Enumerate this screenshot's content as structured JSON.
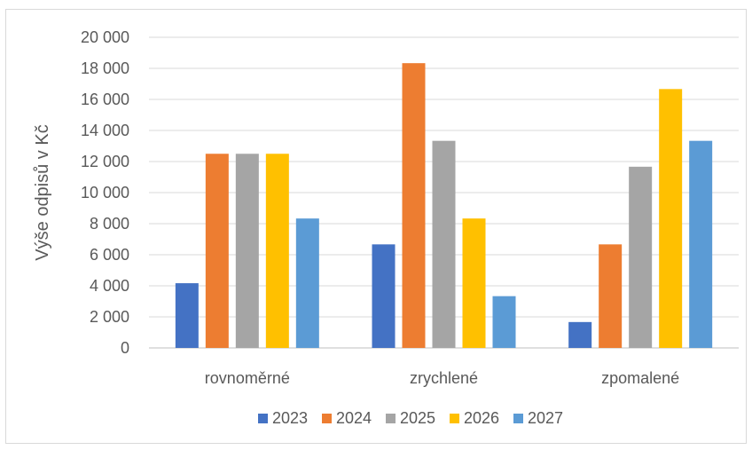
{
  "chart_data": {
    "type": "bar",
    "title": "",
    "xlabel": "",
    "ylabel": "Výše odpisů v Kč",
    "ylim": [
      0,
      20000
    ],
    "yticks": [
      0,
      2000,
      4000,
      6000,
      8000,
      10000,
      12000,
      14000,
      16000,
      18000,
      20000
    ],
    "ytick_labels": [
      "0",
      "2 000",
      "4 000",
      "6 000",
      "8 000",
      "10 000",
      "12 000",
      "14 000",
      "16 000",
      "18 000",
      "20 000"
    ],
    "grid": true,
    "legend_position": "bottom",
    "categories": [
      "rovnoměrné",
      "zrychlené",
      "zpomalené"
    ],
    "series": [
      {
        "name": "2023",
        "color": "#4472c4",
        "values": [
          4167,
          6667,
          1667
        ]
      },
      {
        "name": "2024",
        "color": "#ed7d31",
        "values": [
          12500,
          18333,
          6667
        ]
      },
      {
        "name": "2025",
        "color": "#a5a5a5",
        "values": [
          12500,
          13333,
          11667
        ]
      },
      {
        "name": "2026",
        "color": "#ffc000",
        "values": [
          12500,
          8333,
          16667
        ]
      },
      {
        "name": "2027",
        "color": "#5b9bd5",
        "values": [
          8333,
          3333,
          13333
        ]
      }
    ]
  }
}
